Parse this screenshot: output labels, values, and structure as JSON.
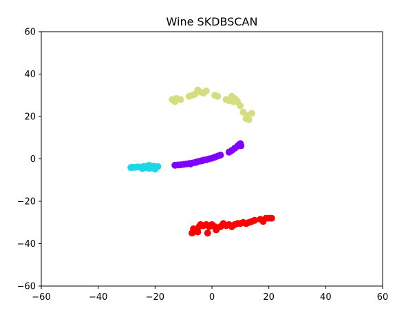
{
  "chart_data": {
    "type": "scatter",
    "title": "Wine SKDBSCAN",
    "xlabel": "",
    "ylabel": "",
    "xlim": [
      -60,
      60
    ],
    "ylim": [
      -60,
      60
    ],
    "xticks": [
      -60,
      -40,
      -20,
      0,
      20,
      40,
      60
    ],
    "yticks": [
      -60,
      -40,
      -20,
      0,
      20,
      40,
      60
    ],
    "xtick_labels": [
      "−60",
      "−40",
      "−20",
      "0",
      "20",
      "40",
      "60"
    ],
    "ytick_labels": [
      "−60",
      "−40",
      "−20",
      "0",
      "20",
      "40",
      "60"
    ],
    "grid": false,
    "series": [
      {
        "name": "cluster-purple",
        "color": "#8000ff",
        "points": [
          [
            -13,
            -3
          ],
          [
            -12,
            -2.9
          ],
          [
            -11,
            -2.8
          ],
          [
            -10,
            -2.6
          ],
          [
            -9,
            -2.4
          ],
          [
            -8,
            -2.2
          ],
          [
            -7,
            -2
          ],
          [
            -6,
            -1.7
          ],
          [
            -5.5,
            -1.6
          ],
          [
            -5,
            -1.3
          ],
          [
            -4,
            -1
          ],
          [
            -3,
            -0.6
          ],
          [
            -2,
            -0.4
          ],
          [
            -1,
            0
          ],
          [
            0,
            0.3
          ],
          [
            1,
            0.8
          ],
          [
            2,
            1.3
          ],
          [
            3,
            1.8
          ],
          [
            6,
            3.2
          ],
          [
            7,
            4
          ],
          [
            8,
            5
          ],
          [
            9,
            6
          ],
          [
            9.5,
            6.6
          ],
          [
            10,
            7.2
          ],
          [
            10.2,
            6.2
          ],
          [
            -7.5,
            -2.4
          ],
          [
            -3.5,
            -0.9
          ]
        ]
      },
      {
        "name": "cluster-cyan",
        "color": "#1dd6e7",
        "points": [
          [
            -28.5,
            -4.1
          ],
          [
            -28,
            -4
          ],
          [
            -27,
            -4
          ],
          [
            -26,
            -3.8
          ],
          [
            -25,
            -4
          ],
          [
            -24,
            -3.5
          ],
          [
            -23,
            -4.2
          ],
          [
            -22.5,
            -3.2
          ],
          [
            -22,
            -4.5
          ],
          [
            -21.5,
            -3.6
          ],
          [
            -21,
            -4.2
          ],
          [
            -20.5,
            -3.4
          ],
          [
            -20,
            -4.8
          ],
          [
            -19,
            -3.6
          ],
          [
            -24.5,
            -4.6
          ],
          [
            -22,
            -3.1
          ]
        ]
      },
      {
        "name": "cluster-yellow",
        "color": "#d4dd80",
        "points": [
          [
            -14,
            28
          ],
          [
            -13,
            27
          ],
          [
            -12.5,
            28.5
          ],
          [
            -11,
            28
          ],
          [
            -8,
            29.5
          ],
          [
            -7,
            30
          ],
          [
            -6,
            30.5
          ],
          [
            -5,
            32.5
          ],
          [
            -4,
            31.5
          ],
          [
            -3,
            31
          ],
          [
            -2,
            32
          ],
          [
            1,
            30
          ],
          [
            2,
            29.5
          ],
          [
            5,
            28
          ],
          [
            6,
            27.5
          ],
          [
            7,
            29.5
          ],
          [
            7.5,
            27
          ],
          [
            8,
            28.5
          ],
          [
            9,
            27
          ],
          [
            10,
            25
          ],
          [
            11,
            22
          ],
          [
            12,
            19
          ],
          [
            13,
            18.5
          ],
          [
            14,
            21.5
          ],
          [
            12.5,
            20.5
          ],
          [
            8.5,
            27.8
          ]
        ]
      },
      {
        "name": "cluster-red",
        "color": "#ff0000",
        "points": [
          [
            -7,
            -35
          ],
          [
            -6.5,
            -33
          ],
          [
            -6,
            -34
          ],
          [
            -5,
            -34.5
          ],
          [
            -4.5,
            -32
          ],
          [
            -4,
            -31
          ],
          [
            -3,
            -31.5
          ],
          [
            -2,
            -31
          ],
          [
            -1,
            -32
          ],
          [
            0,
            -31
          ],
          [
            1,
            -32
          ],
          [
            1.5,
            -33.5
          ],
          [
            3,
            -32
          ],
          [
            4,
            -30.5
          ],
          [
            5,
            -31.5
          ],
          [
            6,
            -31
          ],
          [
            7,
            -32
          ],
          [
            8,
            -31
          ],
          [
            9,
            -30.5
          ],
          [
            10,
            -30.5
          ],
          [
            11,
            -30
          ],
          [
            13,
            -30
          ],
          [
            14,
            -29.5
          ],
          [
            15,
            -29
          ],
          [
            17,
            -28.5
          ],
          [
            18,
            -29.5
          ],
          [
            19,
            -28
          ],
          [
            20,
            -28
          ],
          [
            21,
            -28
          ],
          [
            -1.5,
            -35
          ],
          [
            -5.5,
            -33.5
          ],
          [
            12,
            -30.5
          ]
        ]
      }
    ]
  }
}
